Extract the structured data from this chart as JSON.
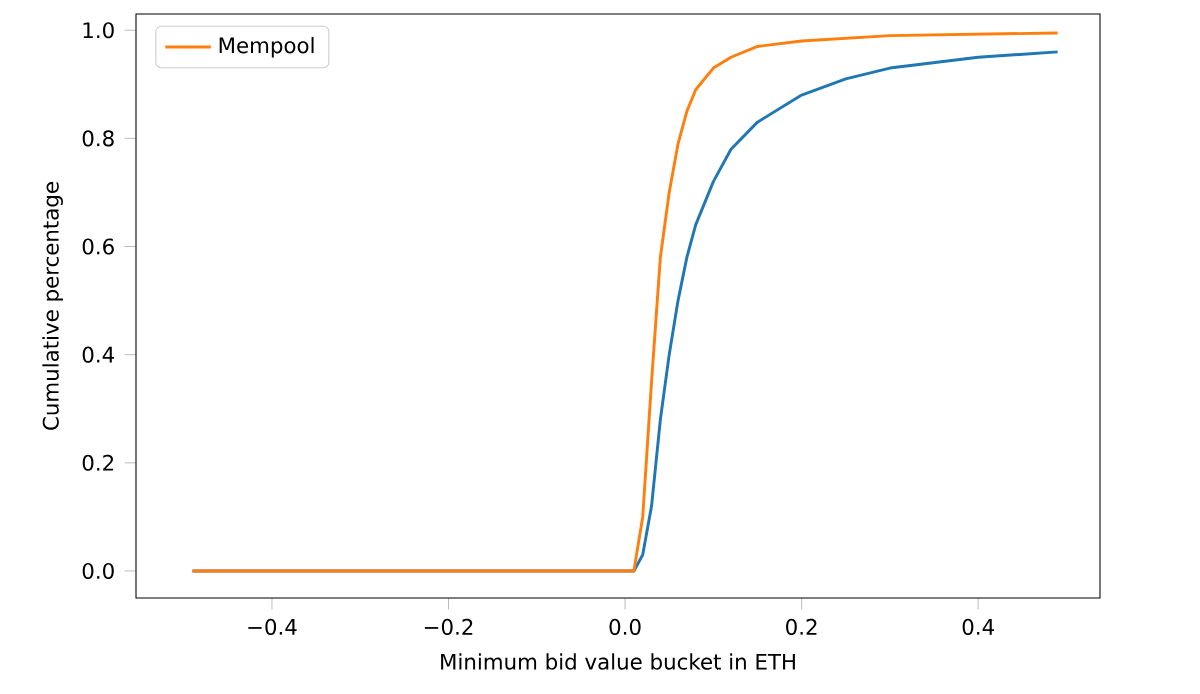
{
  "chart_data": {
    "type": "line",
    "xlabel": "Minimum bid value bucket in ETH",
    "ylabel": "Cumulative percentage",
    "xlim": [
      -0.554,
      0.538
    ],
    "ylim": [
      -0.05,
      1.03
    ],
    "xticks": [
      {
        "value": -0.4,
        "label": "−0.4"
      },
      {
        "value": -0.2,
        "label": "−0.2"
      },
      {
        "value": 0.0,
        "label": "0.0"
      },
      {
        "value": 0.2,
        "label": "0.2"
      },
      {
        "value": 0.4,
        "label": "0.4"
      }
    ],
    "yticks": [
      {
        "value": 0.0,
        "label": "0.0"
      },
      {
        "value": 0.2,
        "label": "0.2"
      },
      {
        "value": 0.4,
        "label": "0.4"
      },
      {
        "value": 0.6,
        "label": "0.6"
      },
      {
        "value": 0.8,
        "label": "0.8"
      },
      {
        "value": 1.0,
        "label": "1.0"
      }
    ],
    "legend": "top left",
    "grid": false,
    "series": [
      {
        "color": "#1f77b4",
        "x": [
          -0.49,
          0.0,
          0.01,
          0.02,
          0.03,
          0.04,
          0.05,
          0.06,
          0.07,
          0.08,
          0.1,
          0.12,
          0.15,
          0.2,
          0.25,
          0.3,
          0.4,
          0.49
        ],
        "values": [
          0.0,
          0.0,
          0.0,
          0.03,
          0.12,
          0.28,
          0.4,
          0.5,
          0.58,
          0.64,
          0.72,
          0.78,
          0.83,
          0.88,
          0.91,
          0.93,
          0.95,
          0.96
        ]
      },
      {
        "name": "Mempool",
        "color": "#ff7f0e",
        "x": [
          -0.49,
          0.0,
          0.01,
          0.02,
          0.03,
          0.04,
          0.05,
          0.06,
          0.07,
          0.08,
          0.1,
          0.12,
          0.15,
          0.2,
          0.3,
          0.49
        ],
        "values": [
          0.0,
          0.0,
          0.0,
          0.1,
          0.35,
          0.58,
          0.7,
          0.79,
          0.85,
          0.89,
          0.93,
          0.95,
          0.97,
          0.98,
          0.99,
          0.995
        ]
      }
    ]
  }
}
